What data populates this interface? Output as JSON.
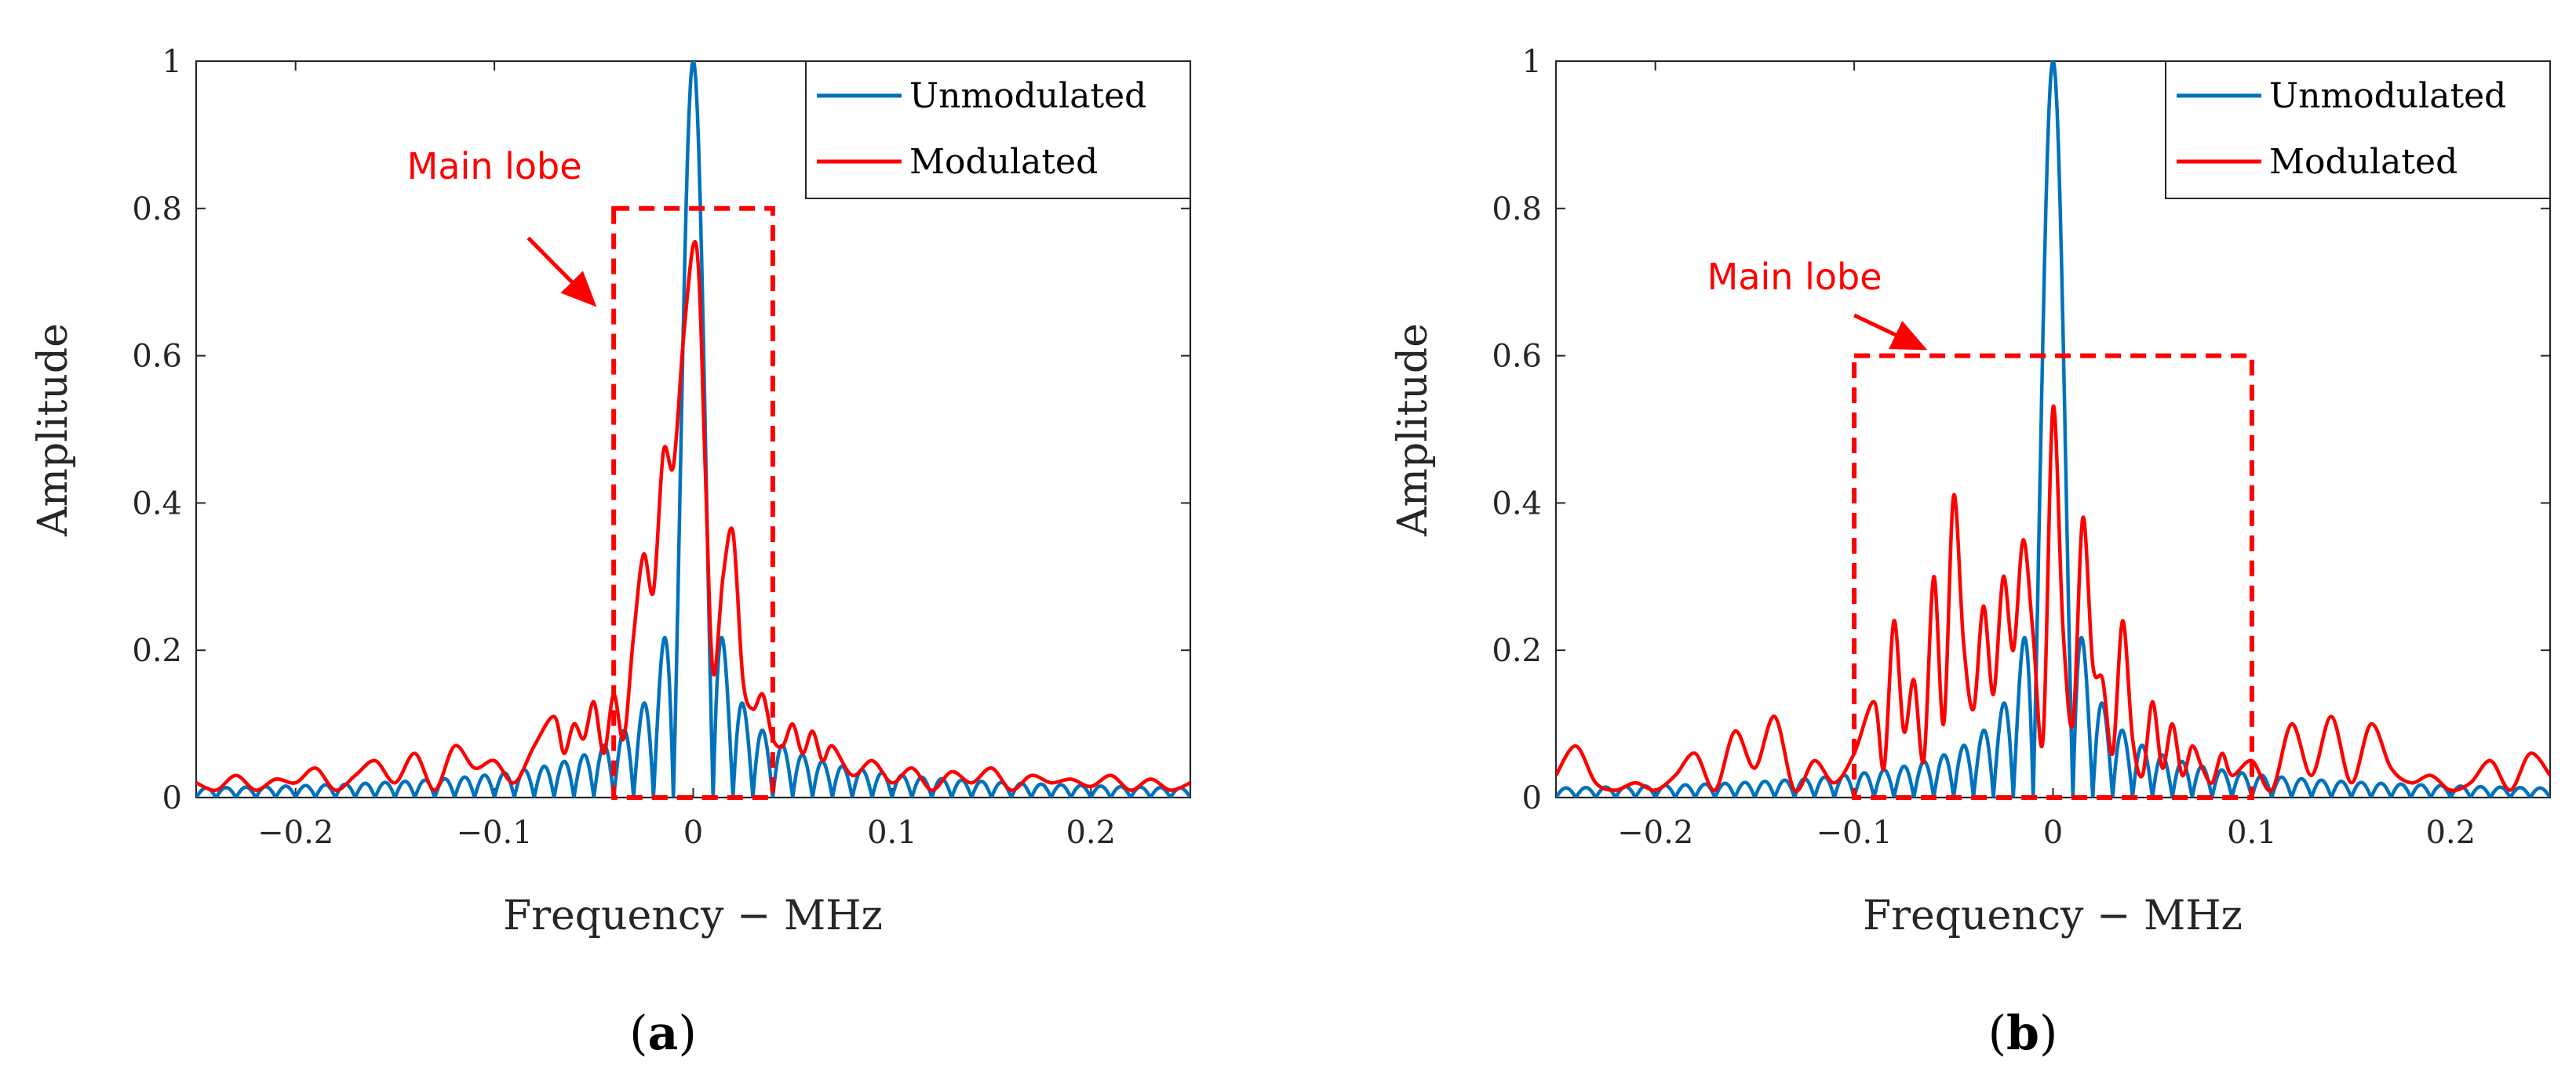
{
  "chart_data": [
    {
      "type": "line",
      "panel_label": {
        "open": "(",
        "letter": "a",
        "close": ")"
      },
      "xlabel": "Frequency − MHz",
      "ylabel": "Amplitude",
      "xlim": [
        -0.25,
        0.25
      ],
      "ylim": [
        0,
        1
      ],
      "xticks": [
        -0.2,
        -0.1,
        0,
        0.1,
        0.2
      ],
      "xtick_labels": [
        "−0.2",
        "−0.1",
        "0",
        "0.1",
        "0.2"
      ],
      "yticks": [
        0,
        0.2,
        0.4,
        0.6,
        0.8,
        1
      ],
      "ytick_labels": [
        "0",
        "0.2",
        "0.4",
        "0.6",
        "0.8",
        "1"
      ],
      "legend": {
        "position": "top-right",
        "entries": [
          "Unmodulated",
          "Modulated"
        ]
      },
      "annotation": {
        "text": "Main lobe",
        "rect_x": [
          -0.04,
          0.04
        ],
        "rect_y": [
          0,
          0.8
        ],
        "arrow_from": [
          -0.083,
          0.76
        ],
        "arrow_to": [
          -0.05,
          0.67
        ],
        "text_at": [
          -0.1,
          0.84
        ]
      },
      "series": [
        {
          "name": "Unmodulated",
          "color": "#0072BD",
          "peak": 1.0,
          "null_spacing": 0.01,
          "sidelobe_peaks": [
            [
              -0.015,
              0.22
            ],
            [
              0.015,
              0.22
            ],
            [
              -0.025,
              0.13
            ],
            [
              0.025,
              0.13
            ],
            [
              -0.035,
              0.09
            ],
            [
              0.035,
              0.09
            ]
          ]
        },
        {
          "name": "Modulated",
          "color": "#FF0000",
          "x": [
            -0.25,
            -0.24,
            -0.23,
            -0.22,
            -0.21,
            -0.2,
            -0.19,
            -0.18,
            -0.17,
            -0.16,
            -0.15,
            -0.14,
            -0.13,
            -0.12,
            -0.11,
            -0.1,
            -0.09,
            -0.08,
            -0.07,
            -0.065,
            -0.06,
            -0.055,
            -0.05,
            -0.045,
            -0.04,
            -0.035,
            -0.03,
            -0.025,
            -0.02,
            -0.015,
            -0.01,
            -0.005,
            0,
            0.003,
            0.006,
            0.01,
            0.015,
            0.02,
            0.025,
            0.03,
            0.035,
            0.04,
            0.045,
            0.05,
            0.055,
            0.06,
            0.065,
            0.07,
            0.08,
            0.09,
            0.1,
            0.11,
            0.12,
            0.13,
            0.14,
            0.15,
            0.16,
            0.17,
            0.18,
            0.19,
            0.2,
            0.21,
            0.22,
            0.23,
            0.24,
            0.25
          ],
          "y": [
            0.02,
            0.01,
            0.03,
            0.01,
            0.025,
            0.02,
            0.04,
            0.01,
            0.03,
            0.05,
            0.02,
            0.06,
            0.01,
            0.07,
            0.04,
            0.05,
            0.02,
            0.07,
            0.11,
            0.06,
            0.1,
            0.08,
            0.13,
            0.06,
            0.14,
            0.08,
            0.22,
            0.33,
            0.28,
            0.47,
            0.45,
            0.62,
            0.75,
            0.7,
            0.45,
            0.17,
            0.3,
            0.36,
            0.16,
            0.12,
            0.14,
            0.08,
            0.07,
            0.1,
            0.06,
            0.09,
            0.05,
            0.07,
            0.03,
            0.05,
            0.02,
            0.04,
            0.01,
            0.035,
            0.02,
            0.04,
            0.01,
            0.03,
            0.02,
            0.025,
            0.015,
            0.03,
            0.01,
            0.025,
            0.01,
            0.02
          ]
        }
      ]
    },
    {
      "type": "line",
      "panel_label": {
        "open": "(",
        "letter": "b",
        "close": ")"
      },
      "xlabel": "Frequency − MHz",
      "ylabel": "Amplitude",
      "xlim": [
        -0.25,
        0.25
      ],
      "ylim": [
        0,
        1
      ],
      "xticks": [
        -0.2,
        -0.1,
        0,
        0.1,
        0.2
      ],
      "xtick_labels": [
        "−0.2",
        "−0.1",
        "0",
        "0.1",
        "0.2"
      ],
      "yticks": [
        0,
        0.2,
        0.4,
        0.6,
        0.8,
        1
      ],
      "ytick_labels": [
        "0",
        "0.2",
        "0.4",
        "0.6",
        "0.8",
        "1"
      ],
      "legend": {
        "position": "top-right",
        "entries": [
          "Unmodulated",
          "Modulated"
        ]
      },
      "annotation": {
        "text": "Main lobe",
        "rect_x": [
          -0.1,
          0.1
        ],
        "rect_y": [
          0,
          0.6
        ],
        "arrow_from": [
          -0.1,
          0.655
        ],
        "arrow_to": [
          -0.065,
          0.61
        ],
        "text_at": [
          -0.13,
          0.69
        ]
      },
      "series": [
        {
          "name": "Unmodulated",
          "color": "#0072BD",
          "peak": 1.0,
          "null_spacing": 0.01,
          "sidelobe_peaks": [
            [
              -0.015,
              0.22
            ],
            [
              0.015,
              0.22
            ],
            [
              -0.025,
              0.13
            ],
            [
              0.025,
              0.13
            ],
            [
              -0.035,
              0.09
            ],
            [
              0.035,
              0.09
            ]
          ]
        },
        {
          "name": "Modulated",
          "color": "#FF0000",
          "x": [
            -0.25,
            -0.24,
            -0.23,
            -0.22,
            -0.21,
            -0.2,
            -0.19,
            -0.18,
            -0.17,
            -0.16,
            -0.15,
            -0.14,
            -0.13,
            -0.12,
            -0.11,
            -0.1,
            -0.09,
            -0.085,
            -0.08,
            -0.075,
            -0.07,
            -0.065,
            -0.06,
            -0.055,
            -0.05,
            -0.045,
            -0.04,
            -0.035,
            -0.03,
            -0.025,
            -0.02,
            -0.015,
            -0.01,
            -0.005,
            0,
            0.005,
            0.01,
            0.015,
            0.02,
            0.025,
            0.03,
            0.035,
            0.04,
            0.045,
            0.05,
            0.055,
            0.06,
            0.065,
            0.07,
            0.075,
            0.08,
            0.085,
            0.09,
            0.1,
            0.11,
            0.12,
            0.13,
            0.14,
            0.15,
            0.16,
            0.17,
            0.18,
            0.19,
            0.2,
            0.21,
            0.22,
            0.23,
            0.24,
            0.25
          ],
          "y": [
            0.03,
            0.07,
            0.02,
            0.01,
            0.02,
            0.01,
            0.03,
            0.06,
            0.01,
            0.09,
            0.04,
            0.11,
            0.01,
            0.05,
            0.02,
            0.06,
            0.13,
            0.04,
            0.24,
            0.09,
            0.16,
            0.05,
            0.3,
            0.1,
            0.41,
            0.21,
            0.12,
            0.26,
            0.14,
            0.3,
            0.2,
            0.35,
            0.22,
            0.08,
            0.53,
            0.23,
            0.1,
            0.38,
            0.18,
            0.16,
            0.06,
            0.24,
            0.08,
            0.03,
            0.13,
            0.04,
            0.1,
            0.03,
            0.07,
            0.04,
            0.02,
            0.06,
            0.03,
            0.05,
            0.01,
            0.1,
            0.03,
            0.11,
            0.02,
            0.1,
            0.04,
            0.02,
            0.03,
            0.01,
            0.02,
            0.05,
            0.01,
            0.06,
            0.03
          ]
        }
      ]
    }
  ]
}
